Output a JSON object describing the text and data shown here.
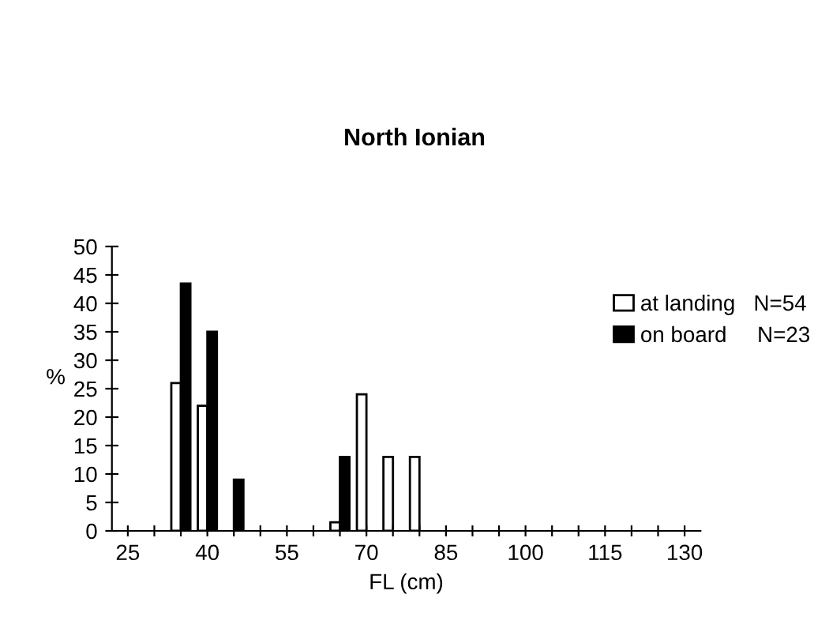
{
  "chart_data": {
    "type": "bar",
    "title": "North Ionian",
    "xlabel": "FL (cm)",
    "ylabel": "%",
    "categories": [
      "25",
      null,
      null,
      "40",
      null,
      null,
      "55",
      null,
      null,
      "70",
      null,
      null,
      "85",
      null,
      null,
      "100",
      null,
      null,
      "115",
      null,
      null,
      "130"
    ],
    "series": [
      {
        "name": "at landing   N=54",
        "color": "#ffffff",
        "values": [
          0,
          0,
          26,
          22,
          0,
          0,
          0,
          0,
          1.5,
          24,
          13,
          13,
          0,
          0,
          0,
          0,
          0,
          0,
          0,
          0,
          0,
          0
        ]
      },
      {
        "name": "on board     N=23",
        "color": "#000000",
        "values": [
          0,
          0,
          43.5,
          35,
          9,
          0,
          0,
          0,
          13,
          0,
          0,
          0,
          0,
          0,
          0,
          0,
          0,
          0,
          0,
          0,
          0,
          0
        ]
      }
    ],
    "ylim": [
      0,
      50
    ],
    "yticks": [
      0,
      5,
      10,
      15,
      20,
      25,
      30,
      35,
      40,
      45,
      50
    ],
    "grid": false,
    "legend": "top right"
  }
}
